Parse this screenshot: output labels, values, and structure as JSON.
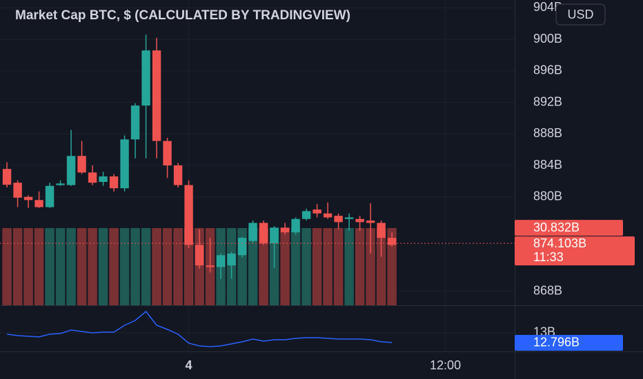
{
  "chart_data": {
    "type": "candlestick",
    "title": "Market Cap BTC, $ (CALCULATED BY TRADINGVIEW)",
    "currency": "USD",
    "open": [
      883.55,
      881.8,
      880.0,
      879.6,
      878.7,
      881.5,
      881.5,
      885.2,
      883.1,
      881.9,
      882.6,
      881.1,
      887.3,
      891.6,
      898.6,
      887.1,
      884.0,
      881.5,
      873.9,
      871.3,
      871.1,
      871.3,
      872.6,
      874.4,
      876.7,
      874.1,
      876.1,
      875.5,
      877.2,
      878.4,
      877.9,
      877.6,
      877.2,
      877.2,
      877.0,
      876.7,
      874.8
    ],
    "high": [
      884.4,
      882.1,
      880.2,
      880.7,
      881.8,
      882.1,
      888.5,
      887.1,
      884.0,
      883.2,
      882.9,
      887.8,
      891.9,
      900.6,
      900.2,
      887.5,
      884.3,
      882.1,
      875.9,
      874.8,
      872.8,
      873.0,
      874.9,
      877.0,
      877.0,
      876.3,
      876.7,
      877.4,
      878.5,
      879.1,
      879.3,
      877.9,
      877.9,
      877.6,
      879.2,
      877.0,
      875.5
    ],
    "low": [
      881.2,
      878.7,
      878.6,
      878.6,
      878.6,
      881.4,
      881.4,
      882.9,
      881.5,
      881.4,
      880.7,
      880.7,
      884.9,
      884.9,
      884.9,
      882.4,
      881.2,
      873.5,
      870.9,
      870.4,
      869.6,
      869.6,
      872.3,
      874.2,
      873.9,
      871.0,
      875.2,
      875.2,
      877.0,
      877.4,
      877.2,
      875.9,
      875.7,
      875.7,
      872.8,
      872.4,
      873.7
    ],
    "close": [
      881.54,
      879.9,
      879.6,
      878.7,
      881.4,
      881.7,
      885.2,
      883.1,
      881.8,
      882.6,
      881.1,
      887.3,
      891.6,
      898.6,
      887.1,
      884.0,
      881.5,
      873.9,
      871.3,
      871.1,
      872.6,
      872.8,
      874.8,
      876.7,
      874.1,
      876.1,
      875.5,
      877.2,
      878.2,
      877.9,
      877.4,
      876.8,
      877.4,
      876.8,
      876.7,
      874.8,
      873.9
    ],
    "up_color": "#26a69a",
    "down_color": "#ef5350",
    "volume_up_color": "#1f5a55",
    "volume_down_color": "#7a3134",
    "ylim": [
      866.24,
      905.0
    ],
    "yticks": [
      {
        "value": 904,
        "label": "904B"
      },
      {
        "value": 900,
        "label": "900B"
      },
      {
        "value": 896,
        "label": "896B"
      },
      {
        "value": 892,
        "label": "892B"
      },
      {
        "value": 888,
        "label": "888B"
      },
      {
        "value": 884,
        "label": "884B"
      },
      {
        "value": 880,
        "label": "880B"
      },
      {
        "value": 868,
        "label": "868B"
      }
    ],
    "xlim": [
      -0.65,
      47.48
    ],
    "xticks": [
      {
        "value": 17,
        "label": "4"
      },
      {
        "value": 41,
        "label": "12:00"
      }
    ],
    "grid": true,
    "last_price": {
      "value": 874.103,
      "label": "874.103B"
    },
    "countdown": "11:33",
    "volume_label": "30.832B",
    "indicator": {
      "color": "#2962ff",
      "values": [
        12.971,
        12.942,
        12.927,
        12.913,
        12.971,
        12.985,
        13.058,
        13.029,
        13.0,
        13.015,
        13.015,
        13.16,
        13.262,
        13.452,
        13.16,
        13.073,
        12.971,
        12.781,
        12.723,
        12.708,
        12.723,
        12.767,
        12.81,
        12.869,
        12.825,
        12.854,
        12.854,
        12.883,
        12.898,
        12.898,
        12.883,
        12.869,
        12.869,
        12.869,
        12.854,
        12.81,
        12.796
      ],
      "ylim": [
        12.606,
        13.583
      ],
      "yticks": [
        {
          "value": 13,
          "label": "13B"
        }
      ],
      "last": {
        "value": 12.796,
        "label": "12.796B"
      }
    }
  }
}
